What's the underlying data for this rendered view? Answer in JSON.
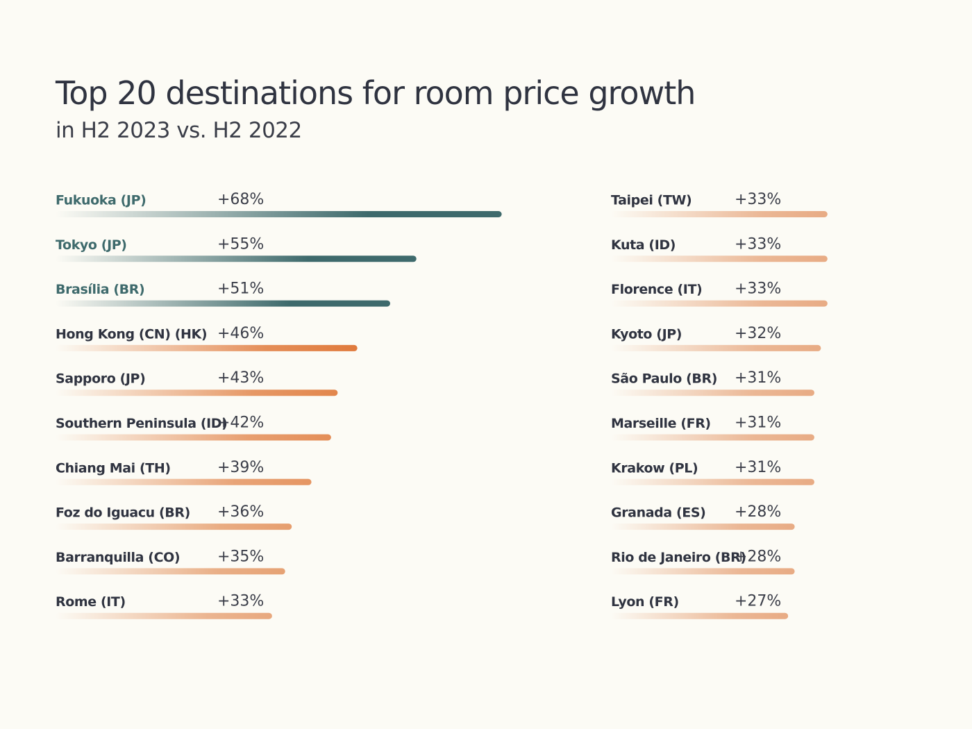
{
  "chart_data": {
    "type": "bar",
    "title": "Top 20 destinations for room price growth",
    "subtitle": "in H2 2023 vs. H2 2022",
    "categories": [
      "Fukuoka (JP)",
      "Tokyo (JP)",
      "Brasília (BR)",
      "Hong Kong (CN) (HK)",
      "Sapporo (JP)",
      "Southern Peninsula (ID)",
      "Chiang Mai (TH)",
      "Foz do Iguacu (BR)",
      "Barranquilla (CO)",
      "Rome (IT)",
      "Taipei (TW)",
      "Kuta (ID)",
      "Florence (IT)",
      "Kyoto (JP)",
      "São Paulo (BR)",
      "Marseille (FR)",
      "Krakow (PL)",
      "Granada (ES)",
      "Rio de Janeiro (BR)",
      "Lyon (FR)"
    ],
    "values": [
      68,
      55,
      51,
      46,
      43,
      42,
      39,
      36,
      35,
      33,
      33,
      33,
      33,
      32,
      31,
      31,
      31,
      28,
      28,
      27
    ],
    "value_labels": [
      "+68%",
      "+55%",
      "+51%",
      "+46%",
      "+43%",
      "+42%",
      "+39%",
      "+36%",
      "+35%",
      "+33%",
      "+33%",
      "+33%",
      "+33%",
      "+32%",
      "+31%",
      "+31%",
      "+31%",
      "+28%",
      "+28%",
      "+27%"
    ],
    "colors": [
      "#3e6a6c",
      "#3e6a6c",
      "#3e6a6c",
      "#e07a3c",
      "#e2864c",
      "#e48e58",
      "#e59562",
      "#e69e6e",
      "#e6a274",
      "#e8a87e",
      "#e8ab84",
      "#e8ab84",
      "#e8ab84",
      "#e8ab84",
      "#e8ab84",
      "#e8ab84",
      "#e8ab84",
      "#e8ab84",
      "#e8ab84",
      "#e8ab84"
    ]
  }
}
